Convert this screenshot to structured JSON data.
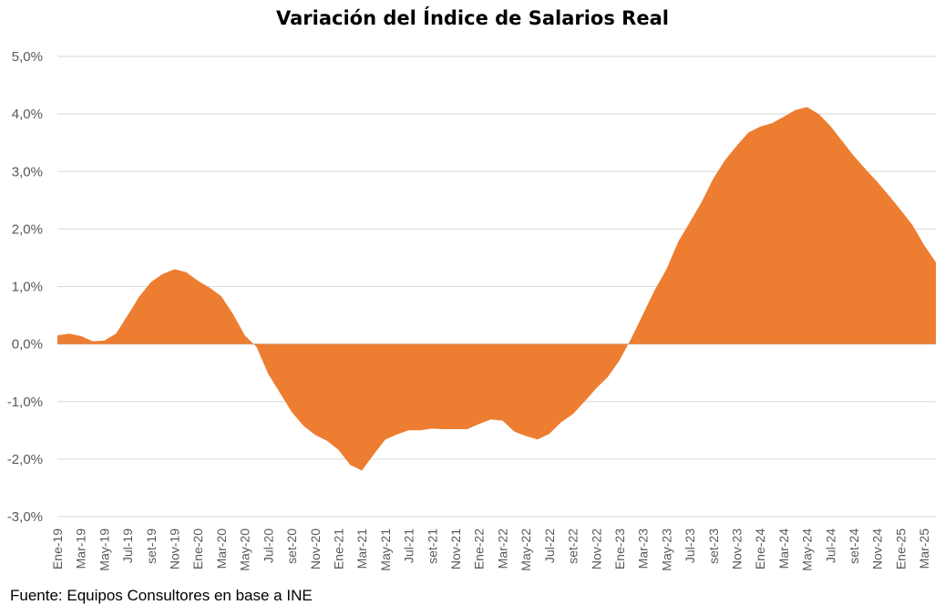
{
  "source_note": "Fuente: Equipos Consultores en base a INE",
  "chart_data": {
    "type": "area",
    "title": "Variación del Índice de Salarios Real",
    "xlabel": "",
    "ylabel": "",
    "ylim": [
      -3.0,
      5.0
    ],
    "yticks": [
      -3.0,
      -2.0,
      -1.0,
      0.0,
      1.0,
      2.0,
      3.0,
      4.0,
      5.0
    ],
    "ytick_labels": [
      "-3,0%",
      "-2,0%",
      "-1,0%",
      "0,0%",
      "1,0%",
      "2,0%",
      "3,0%",
      "4,0%",
      "5,0%"
    ],
    "grid": true,
    "fill_color": "#ED7D31",
    "x": [
      "Ene-19",
      "Feb-19",
      "Mar-19",
      "Abr-19",
      "May-19",
      "Jun-19",
      "Jul-19",
      "Ago-19",
      "set-19",
      "Oct-19",
      "Nov-19",
      "Dic-19",
      "Ene-20",
      "Feb-20",
      "Mar-20",
      "Abr-20",
      "May-20",
      "Jun-20",
      "Jul-20",
      "Ago-20",
      "set-20",
      "Oct-20",
      "Nov-20",
      "Dic-20",
      "Ene-21",
      "Feb-21",
      "Mar-21",
      "Abr-21",
      "May-21",
      "Jun-21",
      "Jul-21",
      "Ago-21",
      "set-21",
      "Oct-21",
      "Nov-21",
      "Dic-21",
      "Ene-22",
      "Feb-22",
      "Mar-22",
      "Abr-22",
      "May-22",
      "Jun-22",
      "Jul-22",
      "Ago-22",
      "set-22",
      "Oct-22",
      "Nov-22",
      "Dic-22",
      "Ene-23",
      "Feb-23",
      "Mar-23",
      "Abr-23",
      "May-23",
      "Jun-23",
      "Jul-23",
      "Ago-23",
      "set-23",
      "Oct-23",
      "Nov-23",
      "Dic-23",
      "Ene-24",
      "Feb-24",
      "Mar-24",
      "Abr-24",
      "May-24",
      "Jun-24",
      "Jul-24",
      "Ago-24",
      "set-24",
      "Oct-24",
      "Nov-24",
      "Dic-24",
      "Ene-25",
      "Feb-25",
      "Mar-25",
      "Abr-25"
    ],
    "values": [
      0.15,
      0.18,
      0.14,
      0.05,
      0.06,
      0.18,
      0.5,
      0.83,
      1.08,
      1.22,
      1.3,
      1.25,
      1.1,
      0.98,
      0.83,
      0.52,
      0.15,
      -0.05,
      -0.52,
      -0.85,
      -1.18,
      -1.42,
      -1.58,
      -1.68,
      -1.84,
      -2.1,
      -2.2,
      -1.92,
      -1.66,
      -1.57,
      -1.5,
      -1.5,
      -1.47,
      -1.48,
      -1.48,
      -1.48,
      -1.39,
      -1.31,
      -1.33,
      -1.52,
      -1.6,
      -1.66,
      -1.56,
      -1.36,
      -1.22,
      -1.0,
      -0.77,
      -0.57,
      -0.28,
      0.1,
      0.52,
      0.94,
      1.3,
      1.78,
      2.12,
      2.47,
      2.88,
      3.2,
      3.45,
      3.68,
      3.78,
      3.84,
      3.95,
      4.07,
      4.12,
      4.0,
      3.79,
      3.53,
      3.27,
      3.04,
      2.82,
      2.58,
      2.33,
      2.07,
      1.72,
      1.42
    ],
    "xtick_labels": [
      "Ene-19",
      "Mar-19",
      "May-19",
      "Jul-19",
      "set-19",
      "Nov-19",
      "Ene-20",
      "Mar-20",
      "May-20",
      "Jul-20",
      "set-20",
      "Nov-20",
      "Ene-21",
      "Mar-21",
      "May-21",
      "Jul-21",
      "set-21",
      "Nov-21",
      "Ene-22",
      "Mar-22",
      "May-22",
      "Jul-22",
      "set-22",
      "Nov-22",
      "Ene-23",
      "Mar-23",
      "May-23",
      "Jul-23",
      "set-23",
      "Nov-23",
      "Ene-24",
      "Mar-24",
      "May-24",
      "Jul-24",
      "set-24",
      "Nov-24",
      "Ene-25",
      "Mar-25"
    ]
  }
}
